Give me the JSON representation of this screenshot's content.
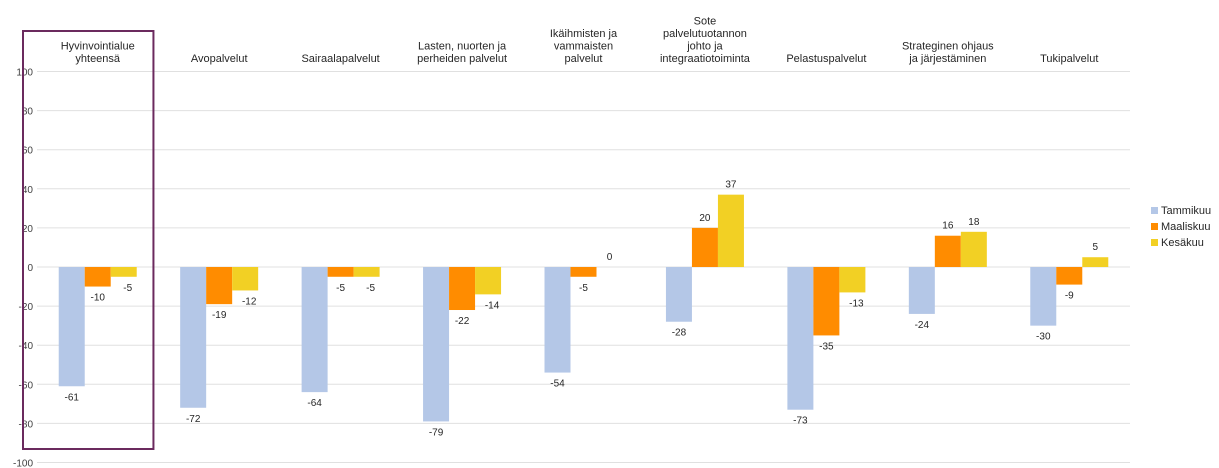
{
  "chart_data": {
    "type": "bar",
    "ylim": [
      -100,
      100
    ],
    "yticks": [
      -100,
      -80,
      -60,
      -40,
      -20,
      0,
      20,
      40,
      60,
      80,
      100
    ],
    "grid": true,
    "legend_position": "right",
    "categories": [
      [
        "Hyvinvointialue",
        "yhteensä"
      ],
      [
        "Avopalvelut"
      ],
      [
        "Sairaalapalvelut"
      ],
      [
        "Lasten, nuorten ja",
        "perheiden palvelut"
      ],
      [
        "Ikäihmisten ja",
        "vammaisten",
        "palvelut"
      ],
      [
        "Sote",
        "palvelutuotannon",
        "johto ja",
        "integraatiotoiminta"
      ],
      [
        "Pelastuspalvelut"
      ],
      [
        "Strateginen ohjaus",
        "ja järjestäminen"
      ],
      [
        "Tukipalvelut"
      ]
    ],
    "series": [
      {
        "name": "Tammikuu",
        "color": "#b4c7e7",
        "values": [
          -61,
          -72,
          -64,
          -79,
          -54,
          -28,
          -73,
          -24,
          -30
        ]
      },
      {
        "name": "Maaliskuu",
        "color": "#ff8c00",
        "values": [
          -10,
          -19,
          -5,
          -22,
          -5,
          20,
          -35,
          16,
          -9
        ]
      },
      {
        "name": "Kesäkuu",
        "color": "#f2d024",
        "values": [
          -5,
          -12,
          -5,
          -14,
          0,
          37,
          -13,
          18,
          5
        ]
      }
    ],
    "highlight_category_index": 0,
    "highlight_color": "#6b2a5e"
  }
}
